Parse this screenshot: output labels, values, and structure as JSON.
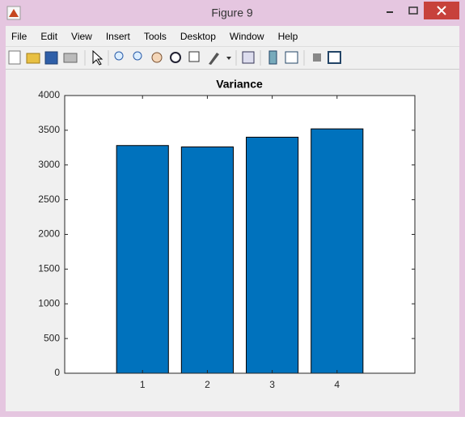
{
  "window": {
    "title": "Figure 9"
  },
  "menu": [
    "File",
    "Edit",
    "View",
    "Insert",
    "Tools",
    "Desktop",
    "Window",
    "Help"
  ],
  "chart_data": {
    "type": "bar",
    "title": "Variance",
    "x": [
      1,
      2,
      3,
      4
    ],
    "values": [
      3280,
      3260,
      3400,
      3520
    ],
    "color": "#0072bd",
    "xlim": [
      -0.2,
      5.2
    ],
    "xticks": [
      1,
      2,
      3,
      4
    ],
    "ylim": [
      0,
      4000
    ],
    "yticks": [
      0,
      500,
      1000,
      1500,
      2000,
      2500,
      3000,
      3500,
      4000
    ]
  }
}
